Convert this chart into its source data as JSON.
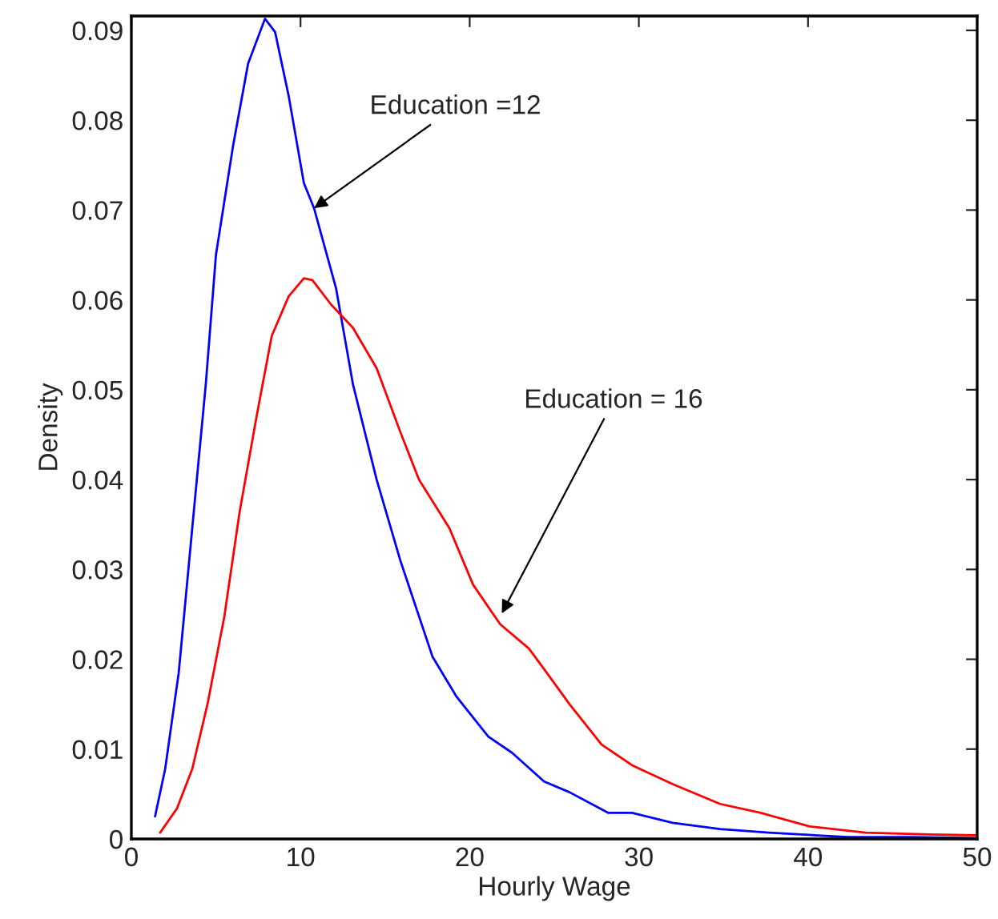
{
  "chart_data": {
    "type": "line",
    "xlabel": "Hourly Wage",
    "ylabel": "Density",
    "xlim": [
      0,
      50
    ],
    "ylim": [
      0,
      0.0916
    ],
    "xticks": [
      0,
      10,
      20,
      30,
      40,
      50
    ],
    "yticks": [
      0,
      0.01,
      0.02,
      0.03,
      0.04,
      0.05,
      0.06,
      0.07,
      0.08,
      0.09
    ],
    "grid": false,
    "line_style": "solid",
    "marker": "none",
    "annotations": [
      {
        "text": "Education =12",
        "x": 10.8,
        "y": 0.0702
      },
      {
        "text": "Education = 16",
        "x": 21.9,
        "y": 0.0251
      }
    ],
    "series": [
      {
        "color": "#0000ff",
        "x": [
          1.4,
          2.0,
          2.8,
          3.6,
          4.4,
          5.0,
          6.0,
          6.9,
          7.9,
          8.5,
          9.3,
          10.2,
          10.8,
          12.1,
          13.1,
          14.5,
          15.9,
          17.8,
          19.2,
          21.1,
          22.5,
          24.4,
          25.9,
          28.2,
          29.6,
          32.0,
          34.8,
          37.7,
          39.6,
          42.4,
          46.2,
          50.0
        ],
        "values": [
          0.0025,
          0.0078,
          0.0185,
          0.0346,
          0.0506,
          0.065,
          0.077,
          0.0863,
          0.0913,
          0.0898,
          0.0827,
          0.073,
          0.0702,
          0.0613,
          0.0506,
          0.04,
          0.031,
          0.0203,
          0.0159,
          0.0114,
          0.0096,
          0.0064,
          0.0052,
          0.0029,
          0.0029,
          0.0018,
          0.0011,
          0.0007,
          0.0005,
          0.0002,
          0.0002,
          0.0001
        ]
      },
      {
        "color": "#ff0000",
        "x": [
          1.7,
          2.7,
          3.6,
          4.5,
          5.5,
          6.4,
          7.4,
          8.3,
          9.3,
          10.2,
          10.7,
          11.8,
          13.1,
          14.5,
          15.9,
          17.0,
          18.8,
          20.2,
          21.8,
          23.5,
          24.4,
          25.9,
          27.8,
          29.6,
          32.0,
          34.8,
          37.2,
          40.1,
          43.4,
          47.2,
          50.0
        ],
        "values": [
          0.0007,
          0.0034,
          0.0078,
          0.015,
          0.0248,
          0.0364,
          0.047,
          0.056,
          0.0604,
          0.0624,
          0.0622,
          0.0595,
          0.0569,
          0.0524,
          0.0453,
          0.04,
          0.0346,
          0.0283,
          0.0239,
          0.0212,
          0.0189,
          0.015,
          0.0105,
          0.0082,
          0.0061,
          0.0039,
          0.0029,
          0.0014,
          0.0007,
          0.0005,
          0.0004
        ]
      }
    ]
  }
}
